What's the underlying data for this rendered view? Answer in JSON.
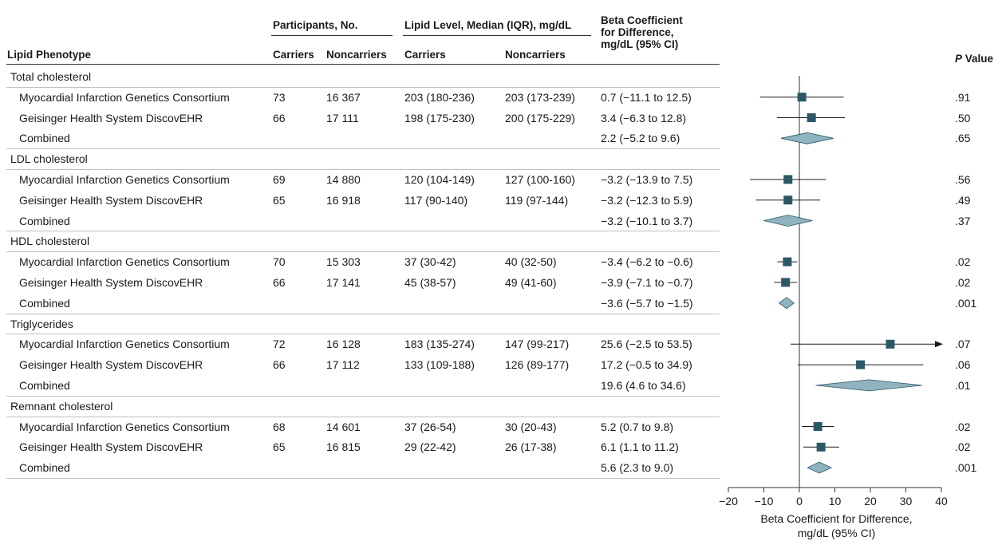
{
  "table": {
    "headers": {
      "phenotype": "Lipid Phenotype",
      "participants_group": "Participants, No.",
      "lipid_group": "Lipid Level, Median (IQR), mg/dL",
      "carriers": "Carriers",
      "noncarriers": "Noncarriers",
      "lipid_carriers": "Carriers",
      "lipid_noncarriers": "Noncarriers",
      "beta_line1": "Beta Coefficient",
      "beta_line2": "for Difference,",
      "beta_line3": "mg/dL (95% CI)",
      "pvalue_italic": "P",
      "pvalue_rest": " Value"
    },
    "groups": [
      {
        "name": "Total cholesterol",
        "rows": [
          {
            "study": "Myocardial Infarction Genetics Consortium",
            "carriers": "73",
            "noncarriers": "16 367",
            "lipid_carriers": "203 (180-236)",
            "lipid_noncarriers": "203 (173-239)",
            "beta": "0.7 (−11.1 to 12.5)",
            "p": ".91"
          },
          {
            "study": "Geisinger Health System DiscovEHR",
            "carriers": "66",
            "noncarriers": "17 111",
            "lipid_carriers": "198 (175-230)",
            "lipid_noncarriers": "200 (175-229)",
            "beta": "3.4 (−6.3 to 12.8)",
            "p": ".50"
          },
          {
            "study": "Combined",
            "carriers": "",
            "noncarriers": "",
            "lipid_carriers": "",
            "lipid_noncarriers": "",
            "beta": "2.2 (−5.2 to 9.6)",
            "p": ".65"
          }
        ]
      },
      {
        "name": "LDL cholesterol",
        "rows": [
          {
            "study": "Myocardial Infarction Genetics Consortium",
            "carriers": "69",
            "noncarriers": "14 880",
            "lipid_carriers": "120 (104-149)",
            "lipid_noncarriers": "127 (100-160)",
            "beta": "−3.2 (−13.9 to 7.5)",
            "p": ".56"
          },
          {
            "study": "Geisinger Health System DiscovEHR",
            "carriers": "65",
            "noncarriers": "16 918",
            "lipid_carriers": "117 (90-140)",
            "lipid_noncarriers": "119 (97-144)",
            "beta": "−3.2 (−12.3 to 5.9)",
            "p": ".49"
          },
          {
            "study": "Combined",
            "carriers": "",
            "noncarriers": "",
            "lipid_carriers": "",
            "lipid_noncarriers": "",
            "beta": "−3.2 (−10.1 to 3.7)",
            "p": ".37"
          }
        ]
      },
      {
        "name": "HDL cholesterol",
        "rows": [
          {
            "study": "Myocardial Infarction Genetics Consortium",
            "carriers": "70",
            "noncarriers": "15 303",
            "lipid_carriers": "37 (30-42)",
            "lipid_noncarriers": "40 (32-50)",
            "beta": "−3.4 (−6.2 to −0.6)",
            "p": ".02"
          },
          {
            "study": "Geisinger Health System DiscovEHR",
            "carriers": "66",
            "noncarriers": "17 141",
            "lipid_carriers": "45 (38-57)",
            "lipid_noncarriers": "49 (41-60)",
            "beta": "−3.9 (−7.1 to −0.7)",
            "p": ".02"
          },
          {
            "study": "Combined",
            "carriers": "",
            "noncarriers": "",
            "lipid_carriers": "",
            "lipid_noncarriers": "",
            "beta": "−3.6 (−5.7 to −1.5)",
            "p": ".001"
          }
        ]
      },
      {
        "name": "Triglycerides",
        "rows": [
          {
            "study": "Myocardial Infarction Genetics Consortium",
            "carriers": "72",
            "noncarriers": "16 128",
            "lipid_carriers": "183 (135-274)",
            "lipid_noncarriers": "147 (99-217)",
            "beta": "25.6 (−2.5 to 53.5)",
            "p": ".07"
          },
          {
            "study": "Geisinger Health System DiscovEHR",
            "carriers": "66",
            "noncarriers": "17 112",
            "lipid_carriers": "133 (109-188)",
            "lipid_noncarriers": "126 (89-177)",
            "beta": "17.2 (−0.5 to 34.9)",
            "p": ".06"
          },
          {
            "study": "Combined",
            "carriers": "",
            "noncarriers": "",
            "lipid_carriers": "",
            "lipid_noncarriers": "",
            "beta": "19.6 (4.6 to 34.6)",
            "p": ".01"
          }
        ]
      },
      {
        "name": "Remnant cholesterol",
        "rows": [
          {
            "study": "Myocardial Infarction Genetics Consortium",
            "carriers": "68",
            "noncarriers": "14 601",
            "lipid_carriers": "37 (26-54)",
            "lipid_noncarriers": "30 (20-43)",
            "beta": "5.2 (0.7 to 9.8)",
            "p": ".02"
          },
          {
            "study": "Geisinger Health System DiscovEHR",
            "carriers": "65",
            "noncarriers": "16 815",
            "lipid_carriers": "29 (22-42)",
            "lipid_noncarriers": "26 (17-38)",
            "beta": "6.1 (1.1 to 11.2)",
            "p": ".02"
          },
          {
            "study": "Combined",
            "carriers": "",
            "noncarriers": "",
            "lipid_carriers": "",
            "lipid_noncarriers": "",
            "beta": "5.6 (2.3 to 9.0)",
            "p": ".001"
          }
        ]
      }
    ]
  },
  "chart_data": {
    "type": "scatter",
    "subtype": "forest-plot",
    "title": "",
    "xlabel": "Beta Coefficient for Difference, mg/dL (95% CI)",
    "xlim": [
      -20,
      40
    ],
    "xticks": [
      -20,
      -10,
      0,
      10,
      20,
      30,
      40
    ],
    "reference_line": 0,
    "marker_color": "#2b5866",
    "diamond_color": "#8fb4bf",
    "series": [
      {
        "label": "Total cholesterol - MIGen",
        "kind": "study",
        "estimate": 0.7,
        "ci": [
          -11.1,
          12.5
        ]
      },
      {
        "label": "Total cholesterol - DiscovEHR",
        "kind": "study",
        "estimate": 3.4,
        "ci": [
          -6.3,
          12.8
        ]
      },
      {
        "label": "Total cholesterol - Combined",
        "kind": "combined",
        "estimate": 2.2,
        "ci": [
          -5.2,
          9.6
        ]
      },
      {
        "label": "LDL cholesterol - MIGen",
        "kind": "study",
        "estimate": -3.2,
        "ci": [
          -13.9,
          7.5
        ]
      },
      {
        "label": "LDL cholesterol - DiscovEHR",
        "kind": "study",
        "estimate": -3.2,
        "ci": [
          -12.3,
          5.9
        ]
      },
      {
        "label": "LDL cholesterol - Combined",
        "kind": "combined",
        "estimate": -3.2,
        "ci": [
          -10.1,
          3.7
        ]
      },
      {
        "label": "HDL cholesterol - MIGen",
        "kind": "study",
        "estimate": -3.4,
        "ci": [
          -6.2,
          -0.6
        ]
      },
      {
        "label": "HDL cholesterol - DiscovEHR",
        "kind": "study",
        "estimate": -3.9,
        "ci": [
          -7.1,
          -0.7
        ]
      },
      {
        "label": "HDL cholesterol - Combined",
        "kind": "combined",
        "estimate": -3.6,
        "ci": [
          -5.7,
          -1.5
        ]
      },
      {
        "label": "Triglycerides - MIGen",
        "kind": "study",
        "estimate": 25.6,
        "ci": [
          -2.5,
          53.5
        ]
      },
      {
        "label": "Triglycerides - DiscovEHR",
        "kind": "study",
        "estimate": 17.2,
        "ci": [
          -0.5,
          34.9
        ]
      },
      {
        "label": "Triglycerides - Combined",
        "kind": "combined",
        "estimate": 19.6,
        "ci": [
          4.6,
          34.6
        ]
      },
      {
        "label": "Remnant cholesterol - MIGen",
        "kind": "study",
        "estimate": 5.2,
        "ci": [
          0.7,
          9.8
        ]
      },
      {
        "label": "Remnant cholesterol - DiscovEHR",
        "kind": "study",
        "estimate": 6.1,
        "ci": [
          1.1,
          11.2
        ]
      },
      {
        "label": "Remnant cholesterol - Combined",
        "kind": "combined",
        "estimate": 5.6,
        "ci": [
          2.3,
          9.0
        ]
      }
    ]
  }
}
